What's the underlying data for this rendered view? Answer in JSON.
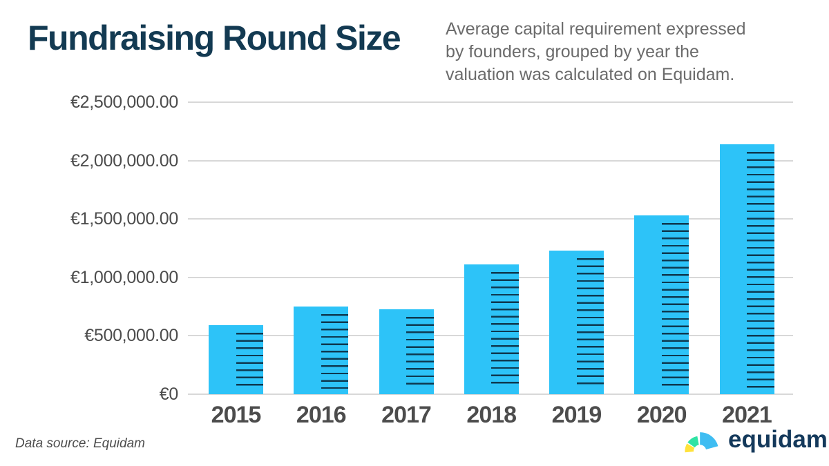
{
  "header": {
    "title": "Fundraising Round Size",
    "subtitle_lines": [
      "Average capital requirement expressed",
      "by founders, grouped by year the",
      "valuation was calculated on Equidam."
    ]
  },
  "chart_data": {
    "type": "bar",
    "title": "Fundraising Round Size",
    "subtitle": "Average capital requirement expressed by founders, grouped by year the valuation was calculated on Equidam.",
    "categories": [
      "2015",
      "2016",
      "2017",
      "2018",
      "2019",
      "2020",
      "2021"
    ],
    "values": [
      590000,
      750000,
      725000,
      1110000,
      1230000,
      1530000,
      2140000
    ],
    "currency": "EUR",
    "xlabel": "",
    "ylabel": "",
    "ylim": [
      0,
      2500000
    ],
    "grid": true,
    "legend": "none",
    "yticks": [
      {
        "value": 2500000,
        "label": "€2,500,000.00"
      },
      {
        "value": 2000000,
        "label": "€2,000,000.00"
      },
      {
        "value": 1500000,
        "label": "€1,500,000.00"
      },
      {
        "value": 1000000,
        "label": "€1,000,000.00"
      },
      {
        "value": 500000,
        "label": "€500,000.00"
      },
      {
        "value": 0,
        "label": "€0"
      }
    ],
    "bar_color": "#2dc3f8",
    "bar_stripe_color": "#0e3950",
    "gridline_color": "#d8d8d8",
    "title_color": "#133a52",
    "subtitle_color": "#6b6b6b",
    "axis_label_color": "#4c4c4c"
  },
  "footer": {
    "source": "Data source: Equidam",
    "brand": "equidam",
    "logo_colors": {
      "yellow": "#ffe23a",
      "green": "#2fe3a4",
      "blue": "#3fbdf2",
      "wordmark": "#14395b"
    }
  }
}
